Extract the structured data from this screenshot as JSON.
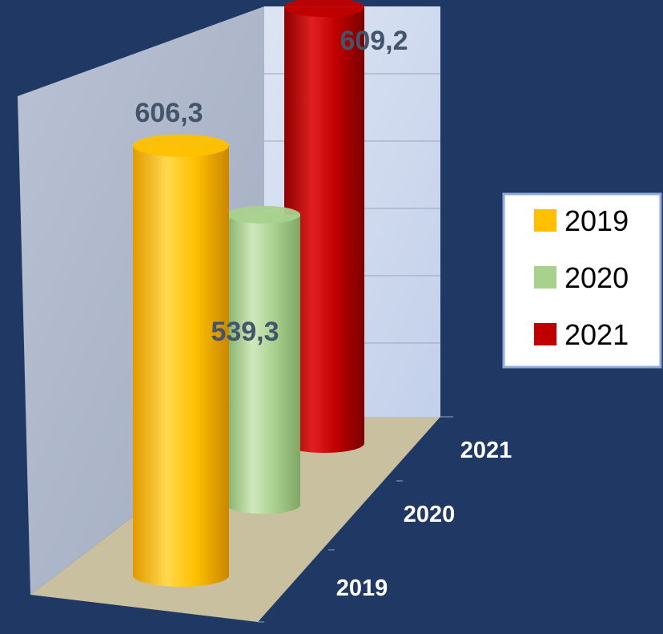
{
  "chart_data": {
    "type": "bar",
    "style": "3d-cylinder",
    "categories": [
      "2019",
      "2020",
      "2021"
    ],
    "values": [
      606.3,
      539.3,
      609.2
    ],
    "value_labels": [
      "606,3",
      "539,3",
      "609,2"
    ],
    "title": "",
    "xlabel": "",
    "ylabel": "",
    "ylim": [
      400,
      650
    ],
    "grid": true,
    "legend": {
      "placement": "right",
      "entries": [
        {
          "label": "2019",
          "color": "#ffc000"
        },
        {
          "label": "2020",
          "color": "#a9d18e"
        },
        {
          "label": "2021",
          "color": "#c00000"
        }
      ]
    },
    "colors": {
      "background": "#1f3864",
      "floor": "#c9c0a0",
      "label": "#44546a"
    }
  }
}
